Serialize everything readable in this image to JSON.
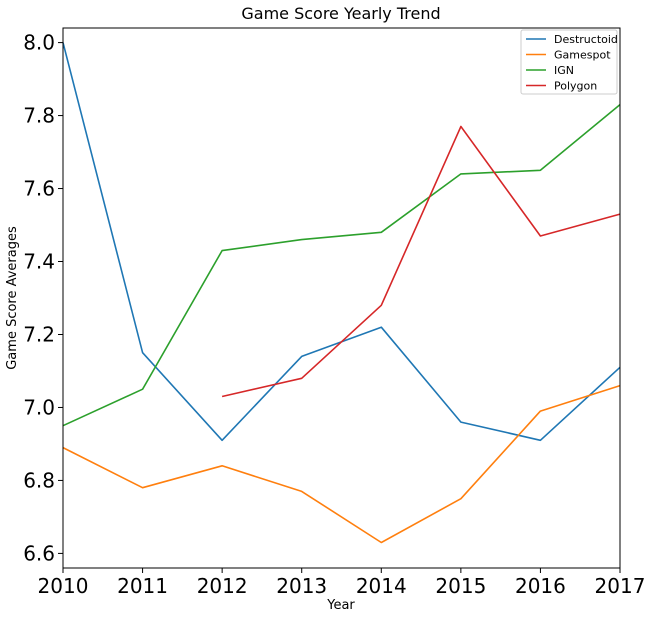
{
  "chart_data": {
    "type": "line",
    "title": "Game Score Yearly Trend",
    "xlabel": "Year",
    "ylabel": "Game Score Averages",
    "x": [
      2010,
      2011,
      2012,
      2013,
      2014,
      2015,
      2016,
      2017
    ],
    "xlim": [
      2010,
      2017
    ],
    "ylim": [
      6.56,
      8.04
    ],
    "xticks": [
      "2010",
      "2011",
      "2012",
      "2013",
      "2014",
      "2015",
      "2016",
      "2017"
    ],
    "yticks": [
      "6.6",
      "6.8",
      "7.0",
      "7.2",
      "7.4",
      "7.6",
      "7.8",
      "8.0"
    ],
    "legend_position": "top-right",
    "grid": false,
    "series": [
      {
        "name": "Destructoid",
        "color": "#1f77b4",
        "values": [
          8.0,
          7.15,
          6.91,
          7.14,
          7.22,
          6.96,
          6.91,
          7.11
        ]
      },
      {
        "name": "Gamespot",
        "color": "#ff7f0e",
        "values": [
          6.89,
          6.78,
          6.84,
          6.77,
          6.63,
          6.75,
          6.99,
          7.06
        ]
      },
      {
        "name": "IGN",
        "color": "#2ca02c",
        "values": [
          6.95,
          7.05,
          7.43,
          7.46,
          7.48,
          7.64,
          7.65,
          7.83
        ]
      },
      {
        "name": "Polygon",
        "color": "#d62728",
        "values": [
          null,
          null,
          7.03,
          7.08,
          7.28,
          7.77,
          7.47,
          7.53
        ]
      }
    ]
  }
}
